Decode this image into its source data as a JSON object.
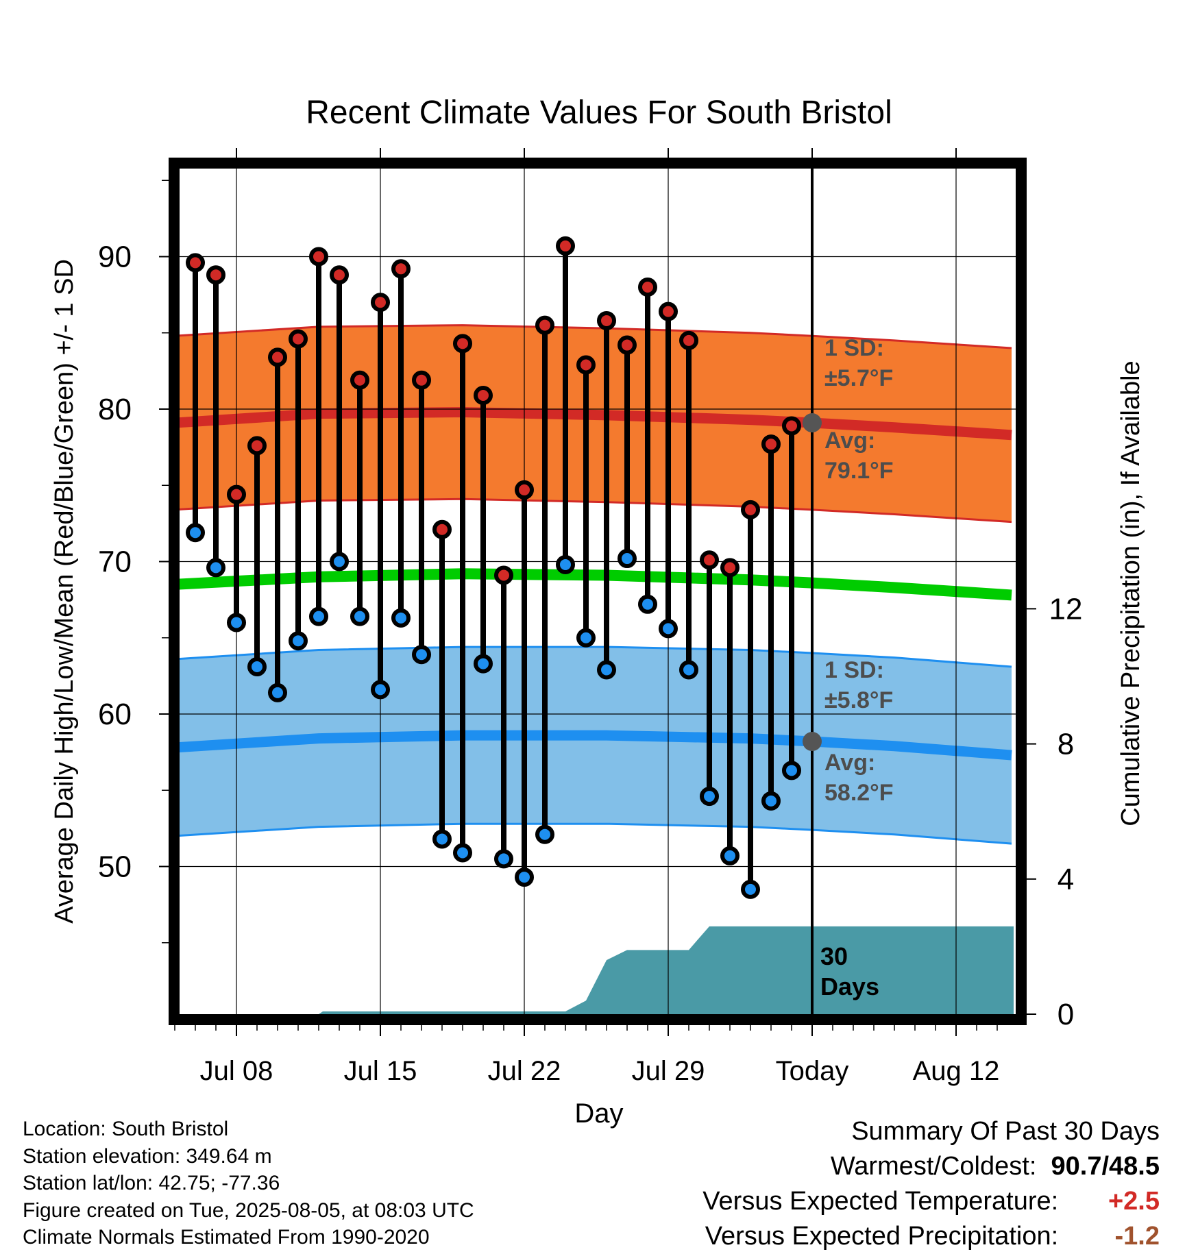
{
  "chart_data": {
    "type": "line",
    "title": "Recent Climate Values For South Bristol",
    "xlabel": "Day",
    "ylabel": "Average Daily High/Low/Mean (Red/Blue/Green) +/- 1 SD",
    "y2label": "Cumulative Precipitation (in), If Available",
    "x_ticks": [
      "Jul 08",
      "Jul 15",
      "Jul 22",
      "Jul 29",
      "Today",
      "Aug 12"
    ],
    "y_ticks": [
      50,
      60,
      70,
      80,
      90
    ],
    "y2_ticks": [
      0,
      4,
      8,
      12
    ],
    "ylim": [
      40.5,
      96.5
    ],
    "y2lim": [
      0,
      24.5
    ],
    "x_range_days": [
      -31.2,
      9.8
    ],
    "daily_days": [
      -30,
      -29,
      -28,
      -27,
      -26,
      -25,
      -24,
      -23,
      -22,
      -21,
      -20,
      -19,
      -18,
      -17,
      -16,
      -15,
      -14,
      -13,
      -12,
      -11,
      -10,
      -9,
      -8,
      -7,
      -6,
      -5,
      -4,
      -3,
      -2,
      -1
    ],
    "daily_high": [
      89.6,
      88.8,
      74.4,
      77.6,
      83.4,
      84.6,
      90.0,
      88.8,
      81.9,
      87.0,
      89.2,
      81.9,
      72.1,
      84.3,
      80.9,
      69.1,
      74.7,
      85.5,
      90.7,
      82.9,
      85.8,
      84.2,
      88.0,
      86.4,
      84.5,
      70.1,
      69.6,
      73.4,
      77.7,
      78.9
    ],
    "daily_low": [
      71.9,
      69.6,
      66.0,
      63.1,
      61.4,
      64.8,
      66.4,
      70.0,
      66.4,
      61.6,
      66.3,
      63.9,
      51.8,
      50.9,
      63.3,
      50.5,
      49.3,
      52.1,
      69.8,
      65.0,
      62.9,
      70.2,
      67.2,
      65.6,
      62.9,
      54.6,
      50.7,
      48.5,
      54.3,
      56.3
    ],
    "normal_high": {
      "days": [
        -31,
        -24,
        -17,
        -10,
        -3,
        0,
        4,
        9.7
      ],
      "mean": [
        79.1,
        79.7,
        79.8,
        79.6,
        79.3,
        79.1,
        78.8,
        78.3
      ],
      "sd": 5.7,
      "label": "Avg:",
      "value_label": "79.1°F",
      "sd_label": "1 SD:",
      "sd_value_label": "±5.7°F"
    },
    "normal_low": {
      "days": [
        -31,
        -24,
        -17,
        -10,
        -3,
        0,
        4,
        9.7
      ],
      "mean": [
        57.8,
        58.4,
        58.6,
        58.6,
        58.4,
        58.2,
        57.9,
        57.3
      ],
      "sd": 5.8,
      "label": "Avg:",
      "value_label": "58.2°F",
      "sd_label": "1 SD:",
      "sd_value_label": "±5.8°F"
    },
    "normal_mean": {
      "days": [
        -31,
        -24,
        -17,
        -10,
        -3,
        0,
        4,
        9.7
      ],
      "values": [
        68.5,
        69.0,
        69.2,
        69.1,
        68.8,
        68.6,
        68.3,
        67.8
      ]
    },
    "cumulative_precip": {
      "days": [
        -31.2,
        -24,
        -23.8,
        -12,
        -11,
        -10,
        -9,
        -8,
        -7,
        -6,
        -5,
        -4,
        -3,
        -1,
        0,
        9.8
      ],
      "values": [
        0,
        0,
        0.08,
        0.08,
        0.4,
        1.6,
        1.9,
        1.9,
        1.9,
        1.9,
        2.6,
        2.6,
        2.6,
        2.6,
        2.6,
        2.6
      ],
      "label": "30 Days"
    },
    "colors": {
      "high": "#d22a26",
      "high_band": "#f47a2e",
      "low": "#1e8ff0",
      "low_band": "#82bfe8",
      "mean": "#00cc00",
      "precip": "#4a9aa6",
      "avg_marker": "#555555",
      "annotation_text": "#4d4d4d",
      "plus_value": "#d22a26",
      "minus_value": "#a0522d"
    }
  },
  "footer": {
    "location": "Location: South Bristol",
    "elevation": "Station elevation: 349.64 m",
    "latlon": "Station lat/lon: 42.75; -77.36",
    "created": "Figure created on Tue, 2025-08-05, at 08:03 UTC",
    "normals": "Climate Normals Estimated From 1990-2020"
  },
  "summary": {
    "heading": "Summary Of Past 30 Days",
    "warm_cold_label": "Warmest/Coldest:",
    "warm_cold_value": "90.7/48.5",
    "temp_label": "Versus Expected Temperature:",
    "temp_value": "+2.5",
    "precip_label": "Versus Expected Precipitation:",
    "precip_value": "-1.2"
  }
}
